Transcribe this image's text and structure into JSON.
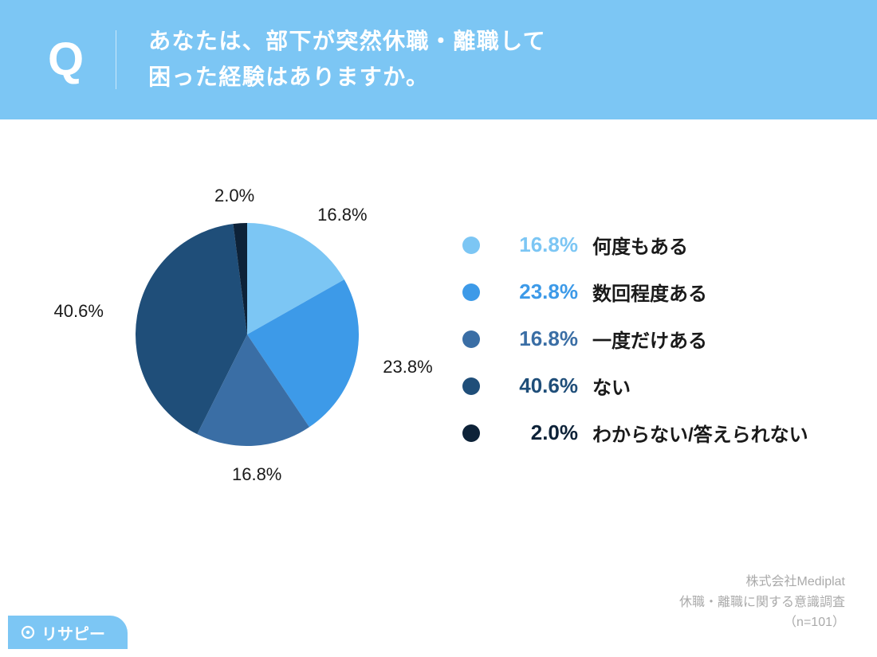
{
  "header": {
    "bg_color": "#7cc6f4",
    "q_mark": "Q",
    "question_line1": "あなたは、部下が突然休職・離職して",
    "question_line2": "困った経験はありますか。",
    "text_color": "#ffffff"
  },
  "chart": {
    "type": "pie",
    "background_color": "#ffffff",
    "slices": [
      {
        "label": "何度もある",
        "value": 16.8,
        "pct_text": "16.8%",
        "color": "#7cc6f4"
      },
      {
        "label": "数回程度ある",
        "value": 23.8,
        "pct_text": "23.8%",
        "color": "#3d9ae8"
      },
      {
        "label": "一度だけある",
        "value": 16.8,
        "pct_text": "16.8%",
        "color": "#3a6ea5"
      },
      {
        "label": "ない",
        "value": 40.6,
        "pct_text": "40.6%",
        "color": "#1f4e79"
      },
      {
        "label": "わからない/答えられない",
        "value": 2.0,
        "pct_text": "2.0%",
        "color": "#0d2238"
      }
    ],
    "label_fontsize": 22,
    "label_color": "#1a1a1a"
  },
  "legend": {
    "pct_fontsize": 26,
    "label_fontsize": 24
  },
  "credit": {
    "line1": "株式会社Mediplat",
    "line2": "休職・離職に関する意識調査",
    "line3": "（n=101）",
    "color": "#aaaaaa"
  },
  "brand": {
    "name": "リサピー",
    "bg_color": "#7cc6f4",
    "text_color": "#ffffff"
  }
}
